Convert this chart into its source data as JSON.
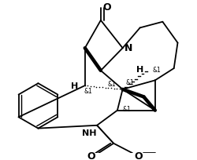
{
  "bg_color": "#ffffff",
  "line_color": "#000000",
  "line_width": 1.3,
  "figsize": [
    2.5,
    2.05
  ],
  "dpi": 100,
  "xlim": [
    5,
    255
  ],
  "ylim": [
    0,
    205
  ]
}
